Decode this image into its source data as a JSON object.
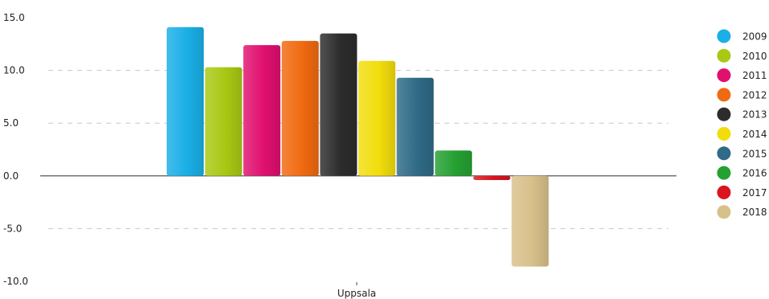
{
  "chart_data": {
    "type": "bar",
    "categories": [
      "Uppsala"
    ],
    "series": [
      {
        "name": "2009",
        "values": [
          14.1
        ],
        "color": "#1aafe6"
      },
      {
        "name": "2010",
        "values": [
          10.3
        ],
        "color": "#a8c813"
      },
      {
        "name": "2011",
        "values": [
          12.4
        ],
        "color": "#e0106f"
      },
      {
        "name": "2012",
        "values": [
          12.8
        ],
        "color": "#f06a10"
      },
      {
        "name": "2013",
        "values": [
          13.5
        ],
        "color": "#2c2c2c"
      },
      {
        "name": "2014",
        "values": [
          10.9
        ],
        "color": "#f2dd0c"
      },
      {
        "name": "2015",
        "values": [
          9.3
        ],
        "color": "#2f6a86"
      },
      {
        "name": "2016",
        "values": [
          2.4
        ],
        "color": "#25a032"
      },
      {
        "name": "2017",
        "values": [
          -0.4
        ],
        "color": "#d9141e"
      },
      {
        "name": "2018",
        "values": [
          -8.6
        ],
        "color": "#d8c08a"
      }
    ],
    "ylim": [
      -10,
      15
    ],
    "yticks": [
      "15.0",
      "10.0",
      "5.0",
      "0.0",
      "-5.0",
      "-10.0"
    ],
    "grid": true,
    "legend_position": "right",
    "title": "",
    "xlabel": "",
    "ylabel": ""
  }
}
